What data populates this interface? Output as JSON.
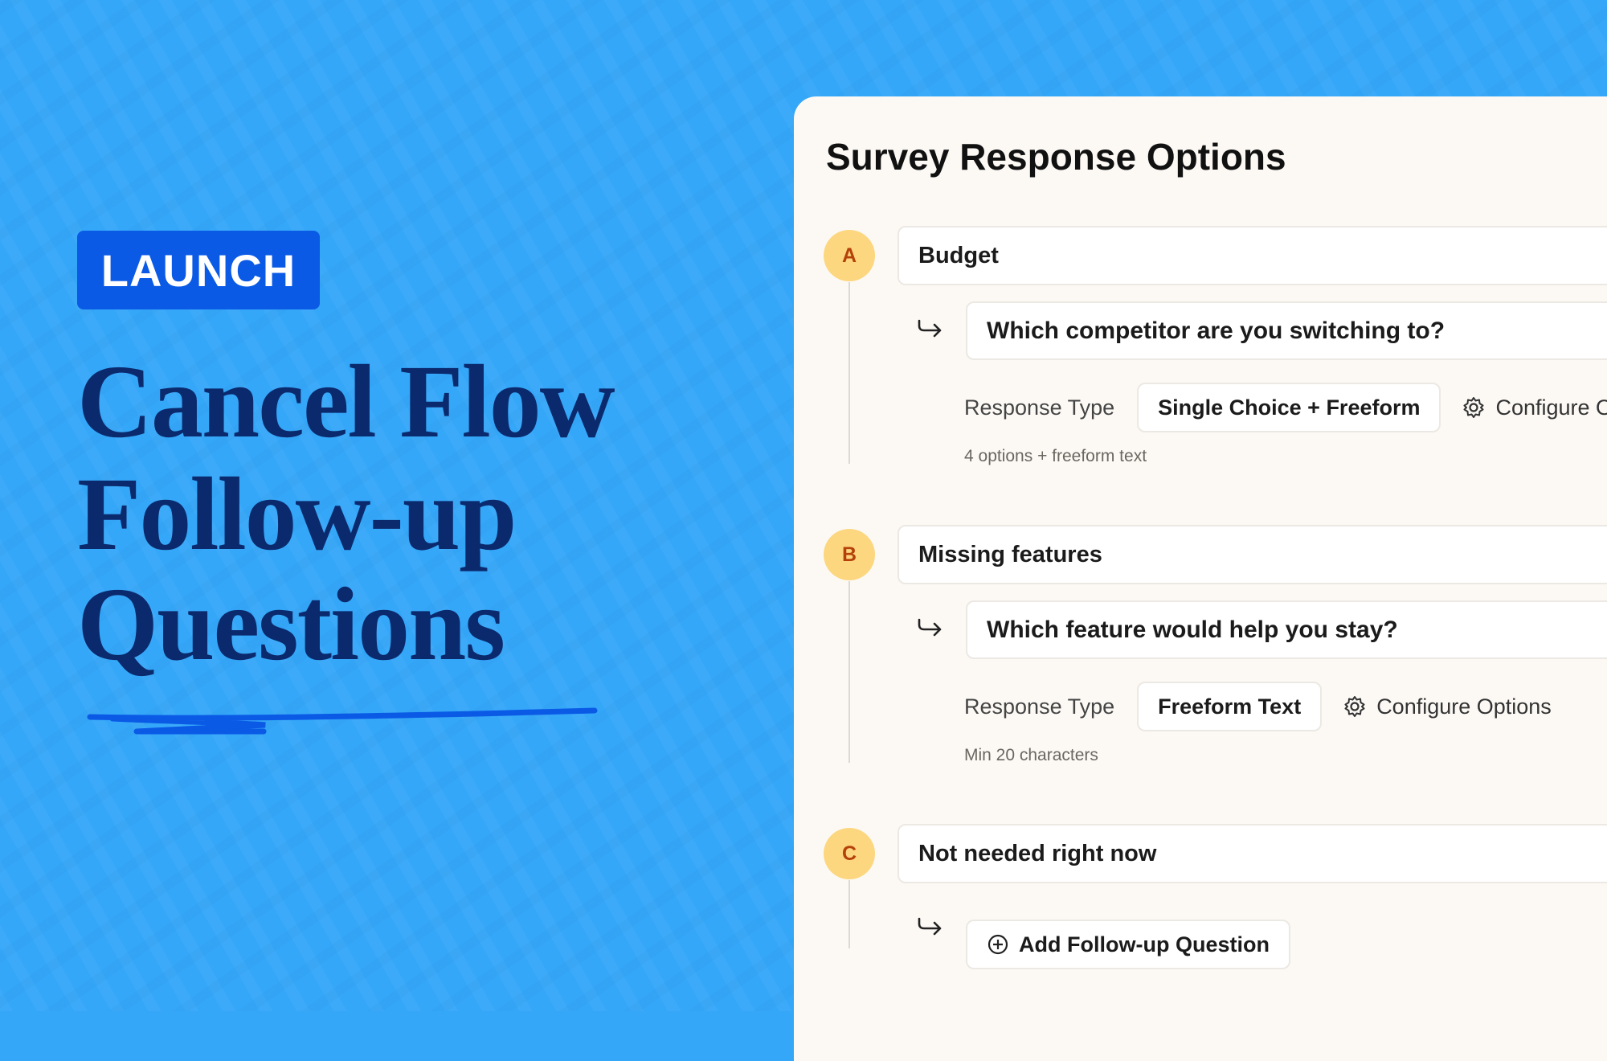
{
  "badge": "LAUNCH",
  "headline": [
    "Cancel Flow",
    "Follow-up",
    "Questions"
  ],
  "panel": {
    "title": "Survey Response Options",
    "options": [
      {
        "letter": "A",
        "label": "Budget",
        "followup": {
          "question": "Which competitor are you switching to?",
          "response_type_label": "Response Type",
          "response_type": "Single Choice + Freeform",
          "configure": "Configure Options",
          "note": "4 options + freeform text"
        }
      },
      {
        "letter": "B",
        "label": "Missing features",
        "followup": {
          "question": "Which feature would help you stay?",
          "response_type_label": "Response Type",
          "response_type": "Freeform Text",
          "configure": "Configure Options",
          "note": "Min 20 characters"
        }
      },
      {
        "letter": "C",
        "label": "Not needed right now",
        "add_button": "Add Follow-up Question"
      }
    ]
  }
}
